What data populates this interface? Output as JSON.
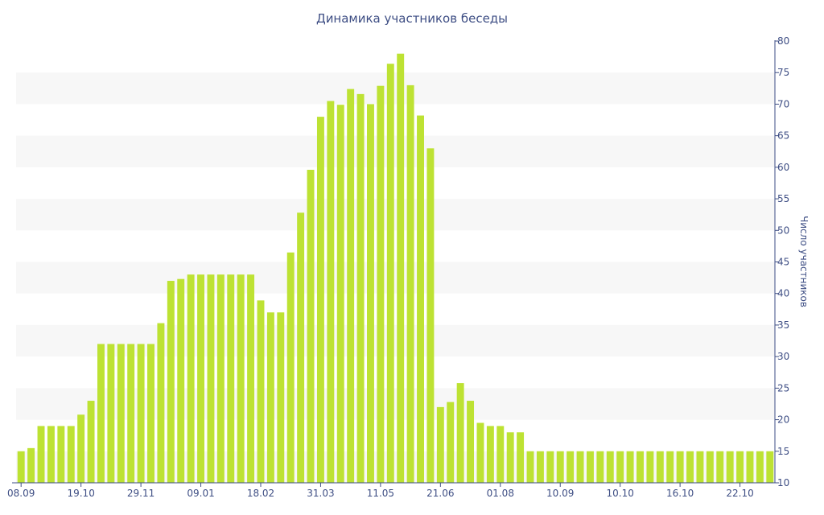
{
  "chart_data": {
    "type": "bar",
    "title": "Динамика участников беседы",
    "xlabel": "",
    "ylabel": "Число участников",
    "ylim": [
      10,
      80
    ],
    "y_ticks": [
      10,
      15,
      20,
      25,
      30,
      35,
      40,
      45,
      50,
      55,
      60,
      65,
      70,
      75,
      80
    ],
    "y_axis_position": "right",
    "grid": "alternating horizontal bands",
    "x_tick_labels": [
      "08.09",
      "19.10",
      "29.11",
      "09.01",
      "18.02",
      "31.03",
      "11.05",
      "21.06",
      "01.08",
      "10.09",
      "10.10",
      "16.10",
      "22.10"
    ],
    "x_tick_label_bar_index": [
      0,
      6,
      12,
      18,
      24,
      30,
      36,
      42,
      48,
      54,
      60,
      66,
      72
    ],
    "values": [
      15,
      15.5,
      19,
      19,
      19,
      19,
      20.8,
      23,
      32,
      32,
      32,
      32,
      32,
      32,
      35.3,
      42,
      42.3,
      43,
      43,
      43,
      43,
      43,
      43,
      43,
      38.9,
      37,
      37,
      46.5,
      52.8,
      59.6,
      68,
      70.5,
      69.9,
      72.4,
      71.6,
      70,
      72.9,
      76.4,
      78,
      73,
      68.2,
      63,
      22,
      22.8,
      25.8,
      23,
      19.5,
      19,
      19,
      18,
      18,
      15,
      15,
      15,
      15,
      15,
      15,
      15,
      15,
      15,
      15,
      15,
      15,
      15,
      15,
      15,
      15,
      15,
      15,
      15,
      15,
      15,
      15,
      15,
      15,
      15
    ],
    "bar_color": "#bde233",
    "band_color": "#f7f7f7",
    "text_color": "#3e4e84"
  }
}
